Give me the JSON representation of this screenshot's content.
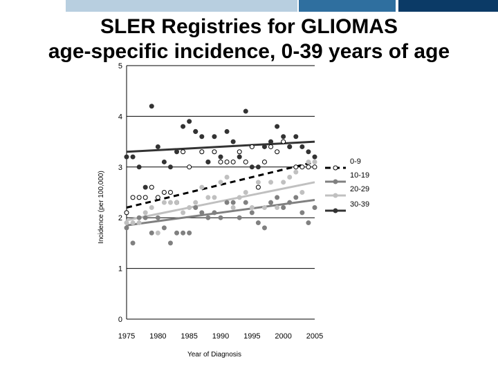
{
  "header_band": {
    "colors": [
      "#ffffff",
      "#b8cfe0",
      "#2f6f9f",
      "#0b3a66"
    ]
  },
  "title_line1": "SLER Registries for GLIOMAS",
  "title_line2": "age-specific incidence, 0-39 years of age",
  "chart_data": {
    "type": "scatter",
    "title": "SLER Registries for GLIOMAS age-specific incidence, 0-39 years of age",
    "xlabel": "Year of Diagnosis",
    "ylabel": "Incidence (per 100,000)",
    "xlim": [
      1975,
      2005
    ],
    "ylim": [
      0,
      5
    ],
    "x_ticks": [
      "1975",
      "1980",
      "1985",
      "1990",
      "1995",
      "2000",
      "2005"
    ],
    "y_ticks": [
      "0",
      "1",
      "2",
      "3",
      "4",
      "5"
    ],
    "grid": "horizontal",
    "legend_position": "right",
    "series": [
      {
        "name": "0-9",
        "color": "#000000",
        "marker": "open-circle",
        "trend_style": "dashed",
        "x": [
          1975,
          1976,
          1977,
          1978,
          1979,
          1980,
          1981,
          1982,
          1983,
          1984,
          1985,
          1986,
          1987,
          1988,
          1989,
          1990,
          1991,
          1992,
          1993,
          1994,
          1995,
          1996,
          1997,
          1998,
          1999,
          2000,
          2001,
          2002,
          2003,
          2004,
          2005
        ],
        "y": [
          2.1,
          2.4,
          2.4,
          2.4,
          2.6,
          2.4,
          2.5,
          2.5,
          2.3,
          3.3,
          3.0,
          3.7,
          3.3,
          3.1,
          3.3,
          3.1,
          3.1,
          3.1,
          3.3,
          3.1,
          3.4,
          2.6,
          3.1,
          3.4,
          3.3,
          3.5,
          3.4,
          3.0,
          3.0,
          3.0,
          3.0
        ],
        "trend": [
          [
            1975,
            2.2
          ],
          [
            2005,
            3.1
          ]
        ]
      },
      {
        "name": "10-19",
        "color": "#808080",
        "marker": "filled-circle",
        "trend_style": "solid",
        "x": [
          1975,
          1976,
          1977,
          1978,
          1979,
          1980,
          1981,
          1982,
          1983,
          1984,
          1985,
          1986,
          1987,
          1988,
          1989,
          1990,
          1991,
          1992,
          1993,
          1994,
          1995,
          1996,
          1997,
          1998,
          1999,
          2000,
          2001,
          2002,
          2003,
          2004,
          2005
        ],
        "y": [
          1.8,
          1.5,
          2.0,
          2.0,
          1.7,
          2.0,
          1.8,
          1.5,
          1.7,
          1.7,
          1.7,
          2.2,
          2.1,
          2.0,
          2.1,
          2.0,
          2.3,
          2.3,
          2.0,
          2.3,
          2.1,
          1.9,
          1.8,
          2.3,
          2.4,
          2.2,
          2.3,
          2.4,
          2.1,
          1.9,
          2.2
        ],
        "trend": [
          [
            1975,
            1.85
          ],
          [
            2005,
            2.35
          ]
        ]
      },
      {
        "name": "20-29",
        "color": "#c0c0c0",
        "marker": "filled-circle",
        "trend_style": "solid",
        "x": [
          1975,
          1976,
          1977,
          1978,
          1979,
          1980,
          1981,
          1982,
          1983,
          1984,
          1985,
          1986,
          1987,
          1988,
          1989,
          1990,
          1991,
          1992,
          1993,
          1994,
          1995,
          1996,
          1997,
          1998,
          1999,
          2000,
          2001,
          2002,
          2003,
          2004,
          2005
        ],
        "y": [
          1.9,
          1.9,
          1.9,
          2.1,
          2.2,
          1.7,
          2.3,
          2.3,
          2.3,
          2.1,
          2.2,
          2.3,
          2.6,
          2.4,
          2.4,
          2.7,
          2.8,
          2.2,
          2.4,
          2.5,
          2.2,
          2.7,
          2.2,
          2.7,
          2.2,
          2.7,
          2.8,
          2.9,
          2.5,
          3.1,
          3.1
        ],
        "trend": [
          [
            1975,
            1.95
          ],
          [
            2005,
            2.7
          ]
        ]
      },
      {
        "name": "30-39",
        "color": "#333333",
        "marker": "filled-circle",
        "trend_style": "solid",
        "x": [
          1975,
          1976,
          1977,
          1978,
          1979,
          1980,
          1981,
          1982,
          1983,
          1984,
          1985,
          1986,
          1987,
          1988,
          1989,
          1990,
          1991,
          1992,
          1993,
          1994,
          1995,
          1996,
          1997,
          1998,
          1999,
          2000,
          2001,
          2002,
          2003,
          2004,
          2005
        ],
        "y": [
          3.2,
          3.2,
          3.0,
          2.6,
          4.2,
          3.4,
          3.1,
          3.0,
          3.3,
          3.8,
          3.9,
          3.7,
          3.6,
          3.1,
          3.6,
          3.2,
          3.7,
          3.5,
          3.2,
          4.1,
          3.0,
          3.0,
          3.4,
          3.5,
          3.8,
          3.6,
          3.4,
          3.6,
          3.4,
          3.3,
          3.2
        ],
        "trend": [
          [
            1975,
            3.3
          ],
          [
            2005,
            3.5
          ]
        ]
      }
    ]
  }
}
